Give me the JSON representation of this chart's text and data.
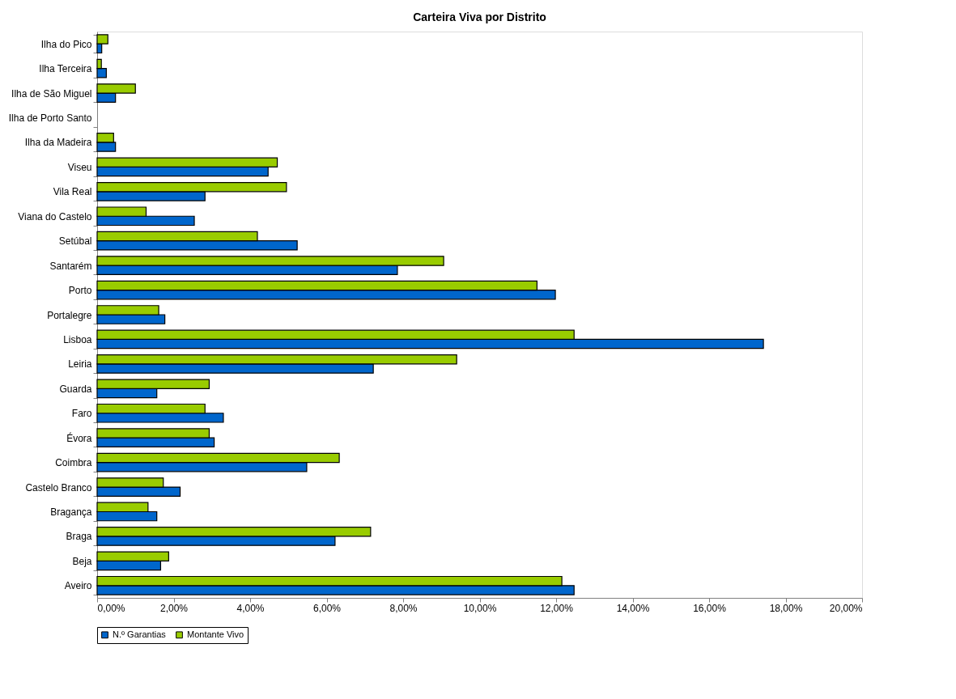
{
  "chart_data": {
    "type": "bar",
    "orientation": "horizontal",
    "title": "Carteira Viva por Distrito",
    "categories": [
      "Ilha do Pico",
      "Ilha Terceira",
      "Ilha de São Miguel",
      "Ilha de Porto Santo",
      "Ilha da Madeira",
      "Viseu",
      "Vila Real",
      "Viana do Castelo",
      "Setúbal",
      "Santarém",
      "Porto",
      "Portalegre",
      "Lisboa",
      "Leiria",
      "Guarda",
      "Faro",
      "Évora",
      "Coimbra",
      "Castelo Branco",
      "Bragança",
      "Braga",
      "Beja",
      "Aveiro"
    ],
    "series": [
      {
        "name": "N.º Garantias",
        "color": "#0066cc",
        "values": [
          0.12,
          0.24,
          0.48,
          null,
          0.48,
          4.47,
          2.82,
          2.54,
          5.23,
          7.85,
          11.98,
          1.77,
          17.42,
          7.22,
          1.56,
          3.3,
          3.06,
          5.48,
          2.17,
          1.56,
          6.22,
          1.66,
          12.47
        ]
      },
      {
        "name": "Montante Vivo",
        "color": "#99cc00",
        "values": [
          0.28,
          0.11,
          1.0,
          null,
          0.43,
          4.71,
          4.95,
          1.28,
          4.19,
          9.06,
          11.5,
          1.61,
          12.47,
          9.4,
          2.93,
          2.82,
          2.93,
          6.33,
          1.73,
          1.33,
          7.15,
          1.87,
          12.15
        ]
      }
    ],
    "xlim": [
      0,
      20
    ],
    "xticks": [
      {
        "value": 0,
        "label": "0,00%"
      },
      {
        "value": 2,
        "label": "2,00%"
      },
      {
        "value": 4,
        "label": "4,00%"
      },
      {
        "value": 6,
        "label": "6,00%"
      },
      {
        "value": 8,
        "label": "8,00%"
      },
      {
        "value": 10,
        "label": "10,00%"
      },
      {
        "value": 12,
        "label": "12,00%"
      },
      {
        "value": 14,
        "label": "14,00%"
      },
      {
        "value": 16,
        "label": "16,00%"
      },
      {
        "value": 18,
        "label": "18,00%"
      },
      {
        "value": 20,
        "label": "20,00%"
      }
    ],
    "grid": false,
    "legend": "bottom"
  }
}
